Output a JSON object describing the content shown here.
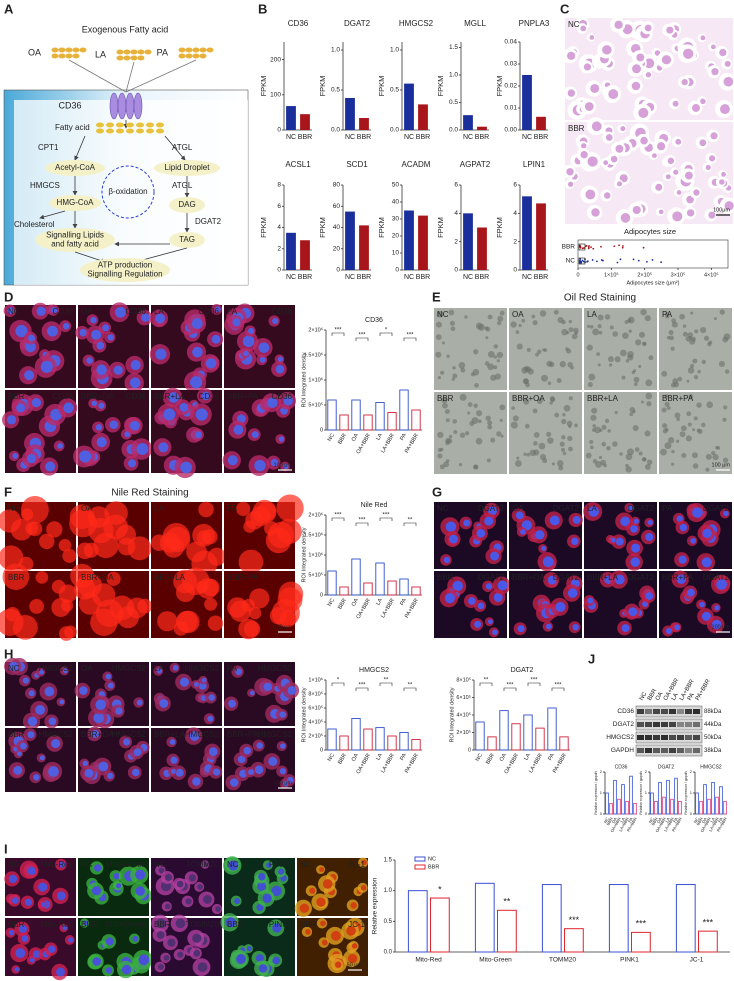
{
  "A": {
    "label": "A",
    "title": "Exogenous Fatty acid",
    "acids": [
      "OA",
      "LA",
      "PA"
    ],
    "transporter": "CD36",
    "fatty_acid": "Fatty acid",
    "cpt1": "CPT1",
    "atgl_1": "ATGL",
    "acetyl_coa": "Acetyl-CoA",
    "lipid_droplet": "Lipid Droplet",
    "hmgcs": "HMGCS",
    "beta_oxidation": "β-oxidation",
    "atgl_2": "ATGL",
    "hmg_coa": "HMG-CoA",
    "dag": "DAG",
    "dgat2": "DGAT2",
    "cholesterol": "Cholesterol",
    "signalling": [
      "Signalling Lipids",
      "and fatty acid"
    ],
    "tag": "TAG",
    "atp": [
      "ATP production",
      "Signalling Regulation"
    ]
  },
  "B": {
    "label": "B",
    "y_label": "FPKM",
    "categories": [
      "NC",
      "BBR"
    ],
    "colors": [
      "#1a2f9c",
      "#a8161b"
    ],
    "charts": [
      {
        "title": "CD36",
        "values": [
          68,
          45
        ],
        "ylim": [
          0,
          250
        ],
        "yticks": [
          0,
          100,
          200
        ]
      },
      {
        "title": "DGAT2",
        "values": [
          0.4,
          0.15
        ],
        "ylim": [
          0,
          1.1
        ],
        "yticks": [
          {
            "value": 0,
            "label": "0.0"
          },
          0.5,
          {
            "value": 1,
            "label": "1.0"
          }
        ]
      },
      {
        "title": "HMGCS2",
        "values": [
          0.58,
          0.32
        ],
        "ylim": [
          0,
          1.1
        ],
        "yticks": [
          {
            "value": 0,
            "label": "0.0"
          },
          0.5,
          {
            "value": 1,
            "label": "1.0"
          }
        ]
      },
      {
        "title": "MGLL",
        "values": [
          0.27,
          0.06
        ],
        "ylim": [
          0,
          1.6
        ],
        "yticks": [
          {
            "value": 0,
            "label": "0.0"
          },
          0.5,
          {
            "value": 1,
            "label": "1.0"
          },
          1.5
        ]
      },
      {
        "title": "PNPLA3",
        "values": [
          0.025,
          0.006
        ],
        "ylim": [
          0,
          0.04
        ],
        "yticks": [
          {
            "value": 0,
            "label": "0.00"
          },
          0.01,
          0.02,
          0.03,
          0.04
        ]
      },
      {
        "title": "ACSL1",
        "values": [
          3.5,
          2.8
        ],
        "ylim": [
          0,
          8
        ],
        "yticks": [
          0,
          2,
          4,
          6,
          8
        ]
      },
      {
        "title": "SCD1",
        "values": [
          55,
          42
        ],
        "ylim": [
          0,
          80
        ],
        "yticks": [
          0,
          20,
          40,
          60,
          80
        ]
      },
      {
        "title": "ACADM",
        "values": [
          35,
          32
        ],
        "ylim": [
          0,
          50
        ],
        "yticks": [
          0,
          10,
          20,
          30,
          40,
          50
        ]
      },
      {
        "title": "AGPAT2",
        "values": [
          4,
          3
        ],
        "ylim": [
          0,
          6
        ],
        "yticks": [
          0,
          2,
          4,
          6
        ]
      },
      {
        "title": "LPIN1",
        "values": [
          5.2,
          4.7
        ],
        "ylim": [
          0,
          6
        ],
        "yticks": [
          0,
          2,
          4,
          6
        ]
      }
    ]
  },
  "C": {
    "label": "C",
    "images": [
      "NC",
      "BBR"
    ],
    "scale": "100μm",
    "plot_title": "Adipocytes size",
    "groups": [
      "BBR",
      "NC"
    ],
    "xlim": [
      0,
      450000
    ],
    "xticks": [
      0,
      {
        "value": 100000,
        "label": "1×10⁵"
      },
      {
        "value": 200000,
        "label": "2×10⁵"
      },
      {
        "value": 300000,
        "label": "3×10⁵"
      },
      {
        "value": 400000,
        "label": "4×10⁵"
      }
    ],
    "x_label": "Adipocytes size (μm²)"
  },
  "D": {
    "label": "D",
    "images": [
      {
        "group": "NC",
        "stain": "CD36"
      },
      {
        "group": "OA",
        "stain": "CD36"
      },
      {
        "group": "LA",
        "stain": "CD36"
      },
      {
        "group": "PA",
        "stain": "CD36"
      },
      {
        "group": "BBR",
        "stain": "CD36"
      },
      {
        "group": "BBR+OA",
        "stain": "CD36"
      },
      {
        "group": "BBR+LA",
        "stain": "CD36"
      },
      {
        "group": "BBR+PA",
        "stain": "CD36"
      }
    ],
    "scale": "100 μm",
    "chart": {
      "title": "CD36",
      "y_label": "ROI Integrated density",
      "categories": [
        "NC",
        "BBR",
        "OA",
        "OA+BBR",
        "LA",
        "LA+BBR",
        "PA",
        "PA+BBR"
      ],
      "values": [
        600000,
        300000,
        600000,
        300000,
        550000,
        350000,
        800000,
        400000
      ],
      "colors": [
        "#2f4fd0",
        "#d0233a"
      ],
      "ylim": [
        0,
        2000000
      ],
      "yticks": [
        0,
        {
          "value": 500000,
          "label": "5×10⁵"
        },
        {
          "value": 1000000,
          "label": "1×10⁶"
        },
        {
          "value": 1500000,
          "label": "1.5×10⁶"
        },
        {
          "value": 2000000,
          "label": "2×10⁶"
        }
      ],
      "significance": [
        "***",
        "***",
        "*",
        "***"
      ]
    }
  },
  "E": {
    "label": "E",
    "title": "Oil Red Staining",
    "images": [
      "NC",
      "OA",
      "LA",
      "PA",
      "BBR",
      "BBR+OA",
      "BBR+LA",
      "BBR+PA"
    ],
    "scale": "100 μm"
  },
  "F": {
    "label": "F",
    "title": "Nile Red Staining",
    "images": [
      "NC",
      "OA",
      "LA",
      "PA",
      "BBR",
      "BBR+OA",
      "BBR+LA",
      "BBR+PA"
    ],
    "scale": "100 μm",
    "chart": {
      "title": "Nile Red",
      "y_label": "ROI Integrated density",
      "categories": [
        "NC",
        "BBR",
        "OA",
        "OA+BBR",
        "LA",
        "LA+BBR",
        "PA",
        "PA+BBR"
      ],
      "values": [
        600000,
        200000,
        900000,
        300000,
        800000,
        350000,
        400000,
        200000
      ],
      "colors": [
        "#2f4fd0",
        "#d0233a"
      ],
      "ylim": [
        0,
        2000000
      ],
      "yticks": [
        0,
        {
          "value": 500000,
          "label": "5×10⁵"
        },
        {
          "value": 1000000,
          "label": "1×10⁶"
        },
        {
          "value": 1500000,
          "label": "1.5×10⁶"
        },
        {
          "value": 2000000,
          "label": "2×10⁶"
        }
      ],
      "significance": [
        "***",
        "***",
        "***",
        "**"
      ]
    }
  },
  "G": {
    "label": "G",
    "images": [
      {
        "group": "NC",
        "stain": "DGAT2"
      },
      {
        "group": "OA",
        "stain": "DGAT2"
      },
      {
        "group": "LA",
        "stain": "DGAT2"
      },
      {
        "group": "PA",
        "stain": "DGAT2"
      },
      {
        "group": "BBR",
        "stain": "DGAT2"
      },
      {
        "group": "BBR+OA",
        "stain": "DGAT2"
      },
      {
        "group": "BBR+LA",
        "stain": "DGAT2"
      },
      {
        "group": "BBR+PA",
        "stain": "DGAT2"
      }
    ],
    "scale": "100 μm"
  },
  "H": {
    "label": "H",
    "images": [
      {
        "group": "NC",
        "stain": "HMGCS2"
      },
      {
        "group": "OA",
        "stain": "HMGCS2"
      },
      {
        "group": "LA",
        "stain": "HMGCS2"
      },
      {
        "group": "PA",
        "stain": "HMGCS2"
      },
      {
        "group": "BBR",
        "stain": "HMGCS2"
      },
      {
        "group": "BBR+OA",
        "stain": "HMGCS2"
      },
      {
        "group": "BBR+LA",
        "stain": "HMGCS2"
      },
      {
        "group": "BBR+PA",
        "stain": "HMGCS2"
      }
    ],
    "scale": "100 μm",
    "charts": [
      {
        "title": "HMGCS2",
        "y_label": "ROI Integrated density",
        "categories": [
          "NC",
          "BBR",
          "OA",
          "OA+BBR",
          "LA",
          "LA+BBR",
          "PA",
          "PA+BBR"
        ],
        "values": [
          300000,
          200000,
          450000,
          300000,
          320000,
          200000,
          250000,
          150000
        ],
        "colors": [
          "#2f4fd0",
          "#d0233a"
        ],
        "ylim": [
          0,
          1000000
        ],
        "yticks": [
          0,
          {
            "value": 200000,
            "label": "2×10⁵"
          },
          {
            "value": 400000,
            "label": "4×10⁵"
          },
          {
            "value": 600000,
            "label": "6×10⁵"
          },
          {
            "value": 800000,
            "label": "8×10⁵"
          },
          {
            "value": 1000000,
            "label": "1×10⁶"
          }
        ],
        "significance": [
          "*",
          "***",
          "**",
          "**"
        ]
      },
      {
        "title": "DGAT2",
        "y_label": "ROI Integrated density",
        "categories": [
          "NC",
          "BBR",
          "OA",
          "OA+BBR",
          "LA",
          "LA+BBR",
          "PA",
          "PA+BBR"
        ],
        "values": [
          320000,
          150000,
          450000,
          300000,
          400000,
          250000,
          480000,
          150000
        ],
        "colors": [
          "#2f4fd0",
          "#d0233a"
        ],
        "ylim": [
          0,
          800000
        ],
        "yticks": [
          0,
          {
            "value": 200000,
            "label": "2×10⁵"
          },
          {
            "value": 400000,
            "label": "4×10⁵"
          },
          {
            "value": 600000,
            "label": "6×10⁵"
          },
          {
            "value": 800000,
            "label": "8×10⁵"
          }
        ],
        "significance": [
          "**",
          "***",
          "***",
          "***"
        ]
      }
    ]
  },
  "J": {
    "label": "J",
    "lanes": [
      "NC",
      "BBR",
      "OA",
      "OA+BBR",
      "LA",
      "LA+BBR",
      "PA",
      "PA+BBR"
    ],
    "bands": [
      {
        "name": "CD36",
        "size": "88kDa"
      },
      {
        "name": "DGAT2",
        "size": "44kDa"
      },
      {
        "name": "HMGCS2",
        "size": "50kDa"
      },
      {
        "name": "GAPDH",
        "size": "38kDa"
      }
    ],
    "charts": [
      {
        "title": "CD36",
        "y_label": "Relative expression / gapdh",
        "categories": [
          "NC",
          "BBR",
          "OA",
          "OA+BBR",
          "LA",
          "LA+BBR",
          "PA",
          "PA+BBR"
        ],
        "values": [
          1,
          0.5,
          1.6,
          0.7,
          1.4,
          0.6,
          1.8,
          0.5
        ],
        "colors": [
          "#4a64e0",
          "#e0508a"
        ],
        "ylim": [
          0,
          2
        ],
        "yticks": [
          0,
          1,
          2
        ]
      },
      {
        "title": "DGAT2",
        "y_label": "Relative expression / gapdh",
        "categories": [
          "NC",
          "BBR",
          "OA",
          "OA+BBR",
          "LA",
          "LA+BBR",
          "PA",
          "PA+BBR"
        ],
        "values": [
          1,
          0.6,
          1.5,
          0.8,
          1.6,
          0.7,
          1.7,
          0.6
        ],
        "colors": [
          "#4a64e0",
          "#e0508a"
        ],
        "ylim": [
          0,
          2
        ],
        "yticks": [
          0,
          1,
          2
        ]
      },
      {
        "title": "HMGCS2",
        "y_label": "Relative expression / gapdh",
        "categories": [
          "NC",
          "BBR",
          "OA",
          "OA+BBR",
          "LA",
          "LA+BBR",
          "PA",
          "PA+BBR"
        ],
        "values": [
          1,
          0.6,
          1.4,
          0.7,
          1.5,
          0.8,
          1.3,
          0.6
        ],
        "colors": [
          "#4a64e0",
          "#e0508a"
        ],
        "ylim": [
          0,
          2
        ],
        "yticks": [
          0,
          1,
          2
        ]
      }
    ]
  },
  "I": {
    "label": "I",
    "images": [
      {
        "group": "NC",
        "stain": "Mito-Red"
      },
      {
        "group": "NC",
        "stain": "Mito-Green"
      },
      {
        "group": "NC",
        "stain": "TOMM20"
      },
      {
        "group": "NC",
        "stain": "PINK1"
      },
      {
        "group": "NC",
        "stain": "JC-1"
      },
      {
        "group": "BBR",
        "stain": "Mito-Red"
      },
      {
        "group": "BBR",
        "stain": "Mito-Green"
      },
      {
        "group": "BBR",
        "stain": "TOMM20"
      },
      {
        "group": "BBR",
        "stain": "PINK1"
      },
      {
        "group": "BBR",
        "stain": "JC-1"
      }
    ],
    "scale": "50 μm",
    "chart": {
      "y_label": "Relative expression",
      "categories": [
        "Mito-Red",
        "Mito-Green",
        "TOMM20",
        "PINK1",
        "JC-1"
      ],
      "series": [
        {
          "name": "NC",
          "color": "#3a4fd8",
          "values": [
            1.0,
            1.12,
            1.1,
            1.1,
            1.1
          ]
        },
        {
          "name": "BBR",
          "color": "#e0242e",
          "values": [
            0.88,
            0.68,
            0.38,
            0.32,
            0.34
          ]
        }
      ],
      "ylim": [
        0,
        1.5
      ],
      "yticks": [
        {
          "value": 0,
          "label": "0.0"
        },
        0.5,
        {
          "value": 1,
          "label": "1.0"
        },
        1.5
      ],
      "significance": [
        "*",
        "**",
        "***",
        "***",
        "***"
      ]
    }
  }
}
